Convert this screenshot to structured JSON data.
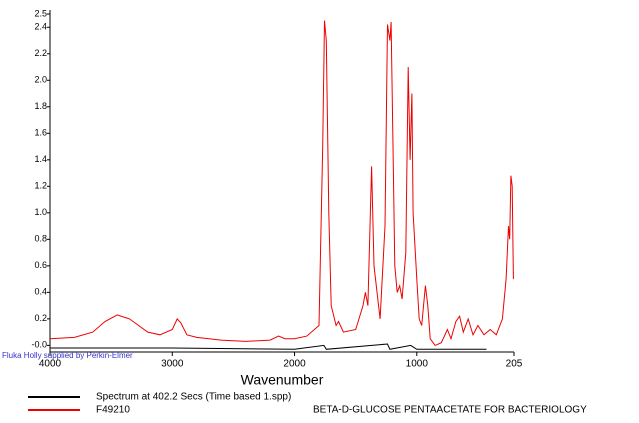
{
  "chart_data": {
    "type": "line",
    "x_label": "Wavenumber",
    "annotation": "Fluka Holly supplied by Perkin-Elmer",
    "footer": "BETA-D-GLUCOSE PENTAACETATE FOR BACTERIOLOGY",
    "xlim": [
      4000,
      205
    ],
    "xticks": [
      4000,
      3000,
      2000,
      1000,
      205
    ],
    "ylim": [
      -0.05,
      2.5
    ],
    "yticks": [
      {
        "value": 0,
        "label": "-0.0"
      },
      0.2,
      0.4,
      0.6,
      0.8,
      {
        "value": 1,
        "label": "1.0"
      },
      1.2,
      1.4,
      1.6,
      1.8,
      {
        "value": 2,
        "label": "2.0"
      },
      2.2,
      2.4,
      2.5
    ],
    "series": [
      {
        "name": "Spectrum at 402.2 Secs (Time based 1.spp)",
        "color": "#000000",
        "x": [
          4000,
          3000,
          2000,
          1760,
          1740,
          1240,
          1220,
          1050,
          1000,
          500,
          430
        ],
        "values": [
          -0.02,
          -0.02,
          -0.03,
          0.0,
          -0.03,
          0.01,
          -0.03,
          0.0,
          -0.03,
          -0.03,
          -0.03
        ]
      },
      {
        "name": "F49210",
        "color": "#ee0000",
        "x": [
          4000,
          3800,
          3650,
          3550,
          3450,
          3350,
          3200,
          3100,
          3000,
          2960,
          2930,
          2880,
          2800,
          2600,
          2400,
          2200,
          2130,
          2080,
          2000,
          1900,
          1800,
          1770,
          1755,
          1740,
          1720,
          1700,
          1660,
          1640,
          1600,
          1500,
          1440,
          1420,
          1400,
          1370,
          1350,
          1300,
          1260,
          1240,
          1220,
          1210,
          1195,
          1180,
          1160,
          1140,
          1120,
          1090,
          1070,
          1055,
          1040,
          1030,
          1000,
          980,
          960,
          930,
          910,
          890,
          850,
          800,
          750,
          720,
          680,
          650,
          620,
          580,
          540,
          500,
          450,
          400,
          350,
          300,
          270,
          250,
          240,
          230,
          220,
          210
        ],
        "values": [
          0.05,
          0.06,
          0.1,
          0.18,
          0.23,
          0.2,
          0.1,
          0.08,
          0.12,
          0.2,
          0.17,
          0.08,
          0.06,
          0.04,
          0.03,
          0.04,
          0.07,
          0.05,
          0.05,
          0.07,
          0.15,
          1.5,
          2.45,
          2.3,
          1.0,
          0.3,
          0.15,
          0.18,
          0.1,
          0.12,
          0.3,
          0.4,
          0.3,
          1.35,
          0.6,
          0.2,
          0.9,
          2.42,
          2.3,
          2.44,
          1.5,
          0.6,
          0.4,
          0.45,
          0.35,
          0.7,
          2.1,
          1.4,
          1.9,
          1.0,
          0.5,
          0.2,
          0.15,
          0.45,
          0.3,
          0.05,
          0.0,
          0.02,
          0.12,
          0.05,
          0.18,
          0.22,
          0.1,
          0.2,
          0.08,
          0.15,
          0.08,
          0.12,
          0.08,
          0.2,
          0.5,
          0.9,
          0.8,
          1.28,
          1.2,
          0.5
        ]
      }
    ]
  }
}
